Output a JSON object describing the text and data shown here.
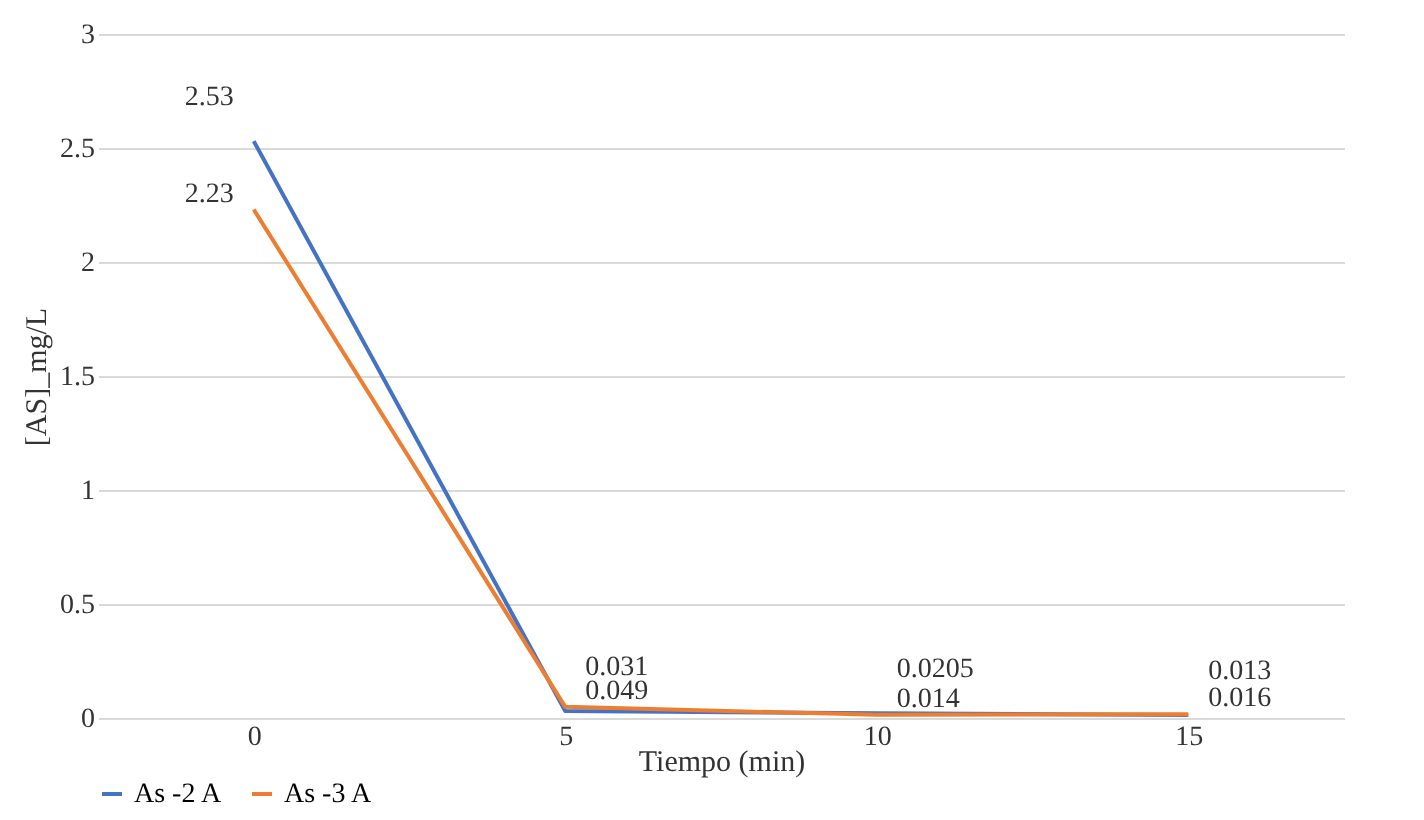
{
  "chart_data": {
    "type": "line",
    "xlabel": "Tiempo (min)",
    "ylabel": "[AS]_mg/L",
    "categories": [
      "0",
      "5",
      "10",
      "15"
    ],
    "series": [
      {
        "name": "As -2 A",
        "color": "#4472c4",
        "values": [
          2.53,
          0.031,
          0.0205,
          0.013
        ]
      },
      {
        "name": "As -3 A",
        "color": "#ed7d31",
        "values": [
          2.23,
          0.049,
          0.014,
          0.016
        ]
      }
    ],
    "ylim": [
      0,
      3
    ],
    "yticks": [
      0,
      0.5,
      1,
      1.5,
      2,
      2.5,
      3
    ],
    "grid": "y",
    "legend": "bottom",
    "data_labels": true,
    "marker": "none",
    "line_style": "solid"
  }
}
